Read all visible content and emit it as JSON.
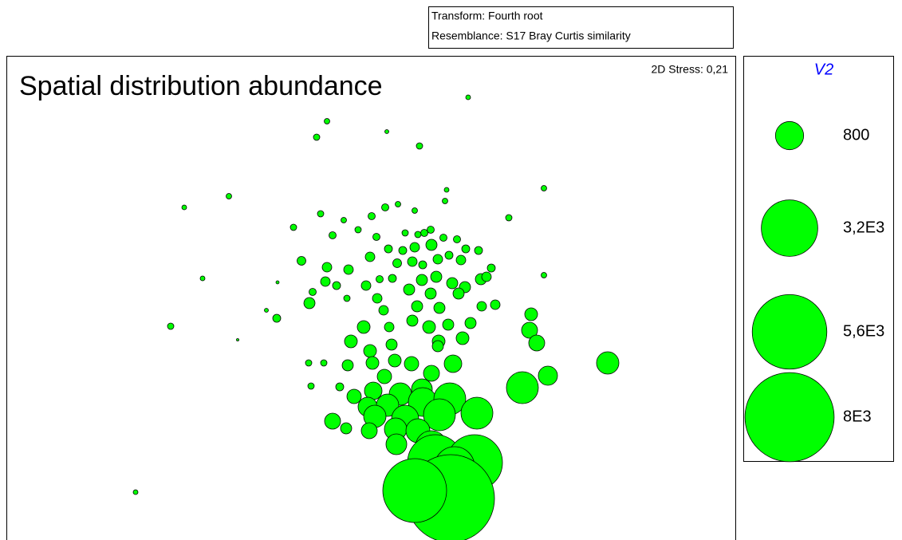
{
  "chart_data": {
    "type": "bubble",
    "title": "Spatial distribution abundance",
    "annotations": {
      "stress": "2D Stress: 0,21",
      "transform": "Transform: Fourth root",
      "resemblance": "Resemblance: S17 Bray Curtis similarity"
    },
    "color": "#00ff00",
    "xlim": [
      0,
      915
    ],
    "ylim": [
      0,
      607
    ],
    "x": [
      579,
      402,
      477,
      389,
      518,
      674,
      552,
      279,
      223,
      550,
      491,
      475,
      512,
      394,
      458,
      423,
      630,
      360,
      441,
      409,
      532,
      524,
      500,
      516,
      464,
      548,
      565,
      370,
      402,
      429,
      456,
      479,
      497,
      512,
      533,
      576,
      592,
      555,
      570,
      541,
      522,
      490,
      509,
      608,
      674,
      246,
      340,
      400,
      468,
      484,
      414,
      451,
      521,
      539,
      559,
      575,
      595,
      602,
      384,
      427,
      465,
      505,
      532,
      567,
      380,
      326,
      339,
      473,
      515,
      543,
      596,
      613,
      206,
      290,
      448,
      480,
      509,
      530,
      554,
      582,
      658,
      656,
      542,
      572,
      432,
      456,
      483,
      665,
      541,
      379,
      398,
      428,
      459,
      487,
      508,
      560,
      754,
      679,
      533,
      474,
      382,
      418,
      436,
      460,
      494,
      521,
      647,
      453,
      478,
      522,
      556,
      590,
      409,
      426,
      462,
      500,
      543,
      455,
      488,
      516,
      489,
      533,
      538,
      587,
      562,
      557,
      512,
      162
    ],
    "y": [
      555,
      525,
      512,
      505,
      494,
      441,
      439,
      431,
      417,
      425,
      421,
      417,
      413,
      409,
      406,
      401,
      404,
      392,
      389,
      382,
      389,
      385,
      385,
      383,
      380,
      379,
      377,
      350,
      342,
      339,
      355,
      365,
      363,
      367,
      370,
      365,
      363,
      357,
      351,
      352,
      345,
      347,
      349,
      341,
      332,
      328,
      323,
      324,
      327,
      328,
      319,
      319,
      326,
      330,
      322,
      317,
      327,
      330,
      311,
      303,
      303,
      314,
      309,
      309,
      297,
      288,
      278,
      288,
      293,
      291,
      293,
      295,
      268,
      251,
      267,
      267,
      275,
      267,
      270,
      272,
      283,
      263,
      249,
      253,
      249,
      237,
      245,
      247,
      243,
      222,
      222,
      219,
      222,
      225,
      221,
      221,
      222,
      206,
      209,
      205,
      193,
      192,
      180,
      187,
      183,
      189,
      191,
      167,
      169,
      173,
      177,
      159,
      149,
      140,
      155,
      152,
      157,
      137,
      139,
      137,
      120,
      117,
      97,
      97,
      92,
      52,
      62,
      60
    ],
    "sizes": [
      23,
      31,
      16,
      41,
      41,
      31,
      23,
      31,
      23,
      31,
      31,
      52,
      31,
      41,
      52,
      31,
      41,
      41,
      41,
      52,
      52,
      52,
      41,
      41,
      52,
      52,
      52,
      77,
      92,
      92,
      92,
      64,
      64,
      92,
      125,
      64,
      64,
      64,
      92,
      92,
      64,
      77,
      92,
      64,
      31,
      23,
      10,
      92,
      52,
      64,
      64,
      92,
      125,
      125,
      125,
      125,
      125,
      92,
      52,
      41,
      92,
      125,
      125,
      125,
      125,
      16,
      64,
      92,
      125,
      125,
      92,
      92,
      41,
      6,
      164,
      92,
      125,
      164,
      125,
      125,
      164,
      256,
      164,
      164,
      164,
      164,
      125,
      256,
      125,
      41,
      41,
      125,
      164,
      164,
      207,
      310,
      502,
      369,
      256,
      207,
      41,
      64,
      207,
      310,
      502,
      433,
      1024,
      369,
      502,
      829,
      1024,
      1024,
      256,
      125,
      502,
      740,
      1024,
      256,
      502,
      576,
      433,
      1024,
      3136,
      3136,
      1600,
      7744,
      4096,
      23
    ],
    "legend": {
      "title": "V2",
      "sizes": [
        800,
        {
          "value": 3200,
          "label": "3,2E3"
        },
        {
          "value": 5600,
          "label": "5,6E3"
        },
        {
          "value": 8000,
          "label": "8E3"
        }
      ]
    }
  }
}
